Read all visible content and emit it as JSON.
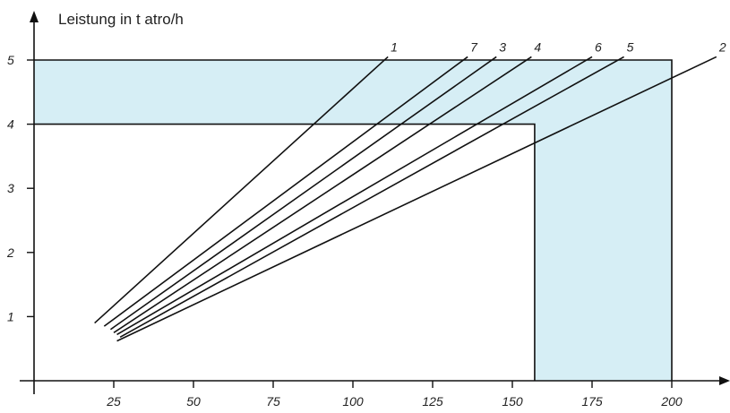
{
  "chart_data": {
    "type": "line",
    "ylabel": "Leistung in t atro/h",
    "xlabel": "",
    "xlim": [
      0,
      215
    ],
    "ylim": [
      0,
      5.5
    ],
    "x_ticks": [
      25,
      50,
      75,
      100,
      125,
      150,
      175,
      200
    ],
    "y_ticks": [
      1,
      2,
      3,
      4,
      5
    ],
    "regions": [
      {
        "x_max": 200,
        "y_max": 5,
        "fill": "#d6eef5"
      },
      {
        "x_max": 157,
        "y_max": 4,
        "fill": "#ffffff"
      }
    ],
    "series": [
      {
        "name": "1",
        "x": [
          19,
          111
        ],
        "y": [
          0.9,
          5.05
        ]
      },
      {
        "name": "7",
        "x": [
          22,
          136
        ],
        "y": [
          0.85,
          5.05
        ]
      },
      {
        "name": "3",
        "x": [
          24,
          145
        ],
        "y": [
          0.8,
          5.05
        ]
      },
      {
        "name": "4",
        "x": [
          25,
          156
        ],
        "y": [
          0.75,
          5.05
        ]
      },
      {
        "name": "6",
        "x": [
          26,
          175
        ],
        "y": [
          0.72,
          5.05
        ]
      },
      {
        "name": "5",
        "x": [
          27,
          185
        ],
        "y": [
          0.68,
          5.05
        ]
      },
      {
        "name": "2",
        "x": [
          26,
          214
        ],
        "y": [
          0.62,
          5.05
        ]
      }
    ],
    "colors": {
      "shade": "#d6eef5",
      "line": "#111111"
    }
  }
}
